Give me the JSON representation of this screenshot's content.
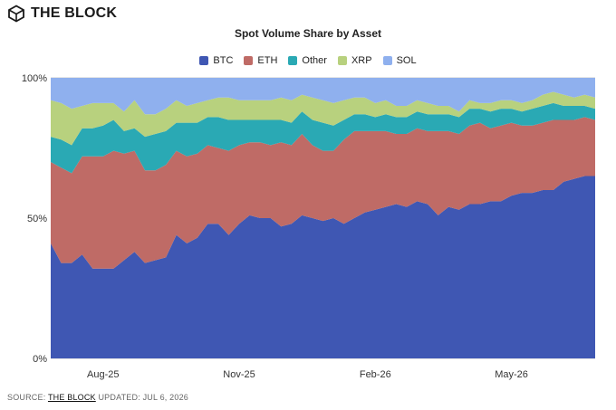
{
  "brand": {
    "name": "THE BLOCK"
  },
  "footer": {
    "source_label": "SOURCE:",
    "source_name": "THE BLOCK",
    "updated": "UPDATED: JUL 6, 2026"
  },
  "chart_data": {
    "type": "area",
    "stacked": true,
    "title": "Spot Volume Share by Asset",
    "y_ticks": [
      "100%",
      "50%",
      "0%"
    ],
    "x_ticks": [
      {
        "label": "Aug-25",
        "index": 5
      },
      {
        "label": "Nov-25",
        "index": 18
      },
      {
        "label": "Feb-26",
        "index": 31
      },
      {
        "label": "May-26",
        "index": 44
      }
    ],
    "ylim": [
      0,
      100
    ],
    "grid": true,
    "legend_position": "top",
    "series": [
      {
        "name": "BTC",
        "color": "#3f57b3",
        "values": [
          41,
          34,
          34,
          37,
          32,
          32,
          32,
          35,
          38,
          34,
          35,
          36,
          44,
          41,
          43,
          48,
          48,
          44,
          48,
          51,
          50,
          50,
          47,
          48,
          51,
          50,
          49,
          50,
          48,
          50,
          52,
          53,
          54,
          55,
          54,
          56,
          55,
          51,
          54,
          53,
          55,
          55,
          56,
          56,
          58,
          59,
          59,
          60,
          60,
          63,
          64,
          65,
          65
        ]
      },
      {
        "name": "ETH",
        "color": "#bf6b66",
        "values": [
          29,
          34,
          32,
          35,
          40,
          40,
          42,
          38,
          36,
          33,
          32,
          33,
          30,
          31,
          30,
          28,
          27,
          30,
          28,
          26,
          27,
          26,
          30,
          28,
          29,
          26,
          25,
          24,
          30,
          31,
          29,
          28,
          27,
          25,
          26,
          26,
          26,
          30,
          27,
          27,
          28,
          29,
          26,
          27,
          26,
          24,
          24,
          24,
          25,
          22,
          21,
          21,
          20
        ]
      },
      {
        "name": "Other",
        "color": "#2aa9b4",
        "values": [
          9,
          10,
          10,
          10,
          10,
          11,
          11,
          8,
          8,
          12,
          13,
          12,
          10,
          12,
          11,
          10,
          11,
          11,
          9,
          8,
          8,
          9,
          8,
          8,
          8,
          9,
          10,
          9,
          7,
          6,
          6,
          5,
          6,
          6,
          6,
          6,
          6,
          6,
          6,
          6,
          6,
          5,
          6,
          6,
          5,
          5,
          6,
          6,
          6,
          5,
          5,
          4,
          4
        ]
      },
      {
        "name": "XRP",
        "color": "#b8d17e",
        "values": [
          13,
          13,
          13,
          8,
          9,
          8,
          6,
          7,
          10,
          8,
          7,
          8,
          8,
          6,
          7,
          6,
          7,
          8,
          7,
          7,
          7,
          7,
          8,
          8,
          6,
          8,
          8,
          8,
          7,
          6,
          6,
          5,
          5,
          4,
          4,
          4,
          4,
          3,
          3,
          2,
          3,
          2,
          3,
          3,
          3,
          3,
          3,
          4,
          4,
          4,
          3,
          4,
          4
        ]
      },
      {
        "name": "SOL",
        "color": "#8fb0ee",
        "values": [
          8,
          9,
          11,
          10,
          9,
          9,
          9,
          12,
          8,
          13,
          13,
          11,
          8,
          10,
          9,
          8,
          7,
          7,
          8,
          8,
          8,
          8,
          7,
          8,
          6,
          7,
          8,
          9,
          8,
          7,
          7,
          9,
          8,
          10,
          10,
          8,
          9,
          10,
          10,
          12,
          8,
          9,
          9,
          8,
          8,
          9,
          8,
          6,
          5,
          6,
          7,
          6,
          7
        ]
      }
    ]
  }
}
